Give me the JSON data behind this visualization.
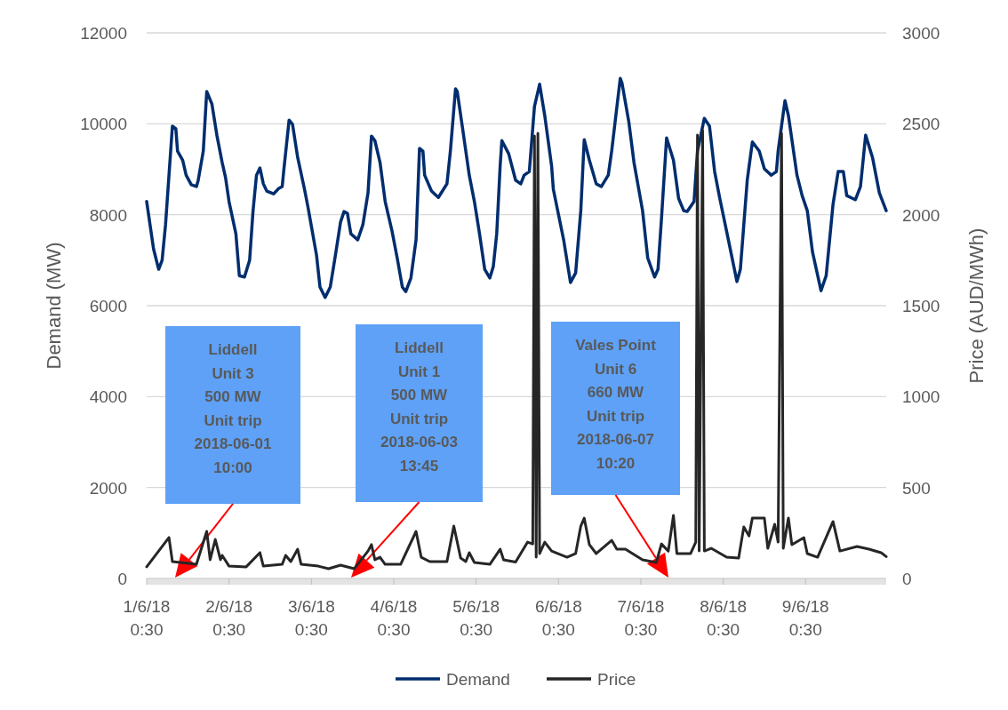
{
  "chart_data": {
    "type": "line",
    "xlim": [
      "2018-06-01T00:30",
      "2018-06-10T00:00"
    ],
    "xticks": [
      {
        "value": "2018-06-01T00:30",
        "label": "1/6/18 0:30"
      },
      {
        "value": "2018-06-02T00:30",
        "label": "2/6/18 0:30"
      },
      {
        "value": "2018-06-03T00:30",
        "label": "3/6/18 0:30"
      },
      {
        "value": "2018-06-04T00:30",
        "label": "4/6/18 0:30"
      },
      {
        "value": "2018-06-05T00:30",
        "label": "5/6/18 0:30"
      },
      {
        "value": "2018-06-06T00:30",
        "label": "6/6/18 0:30"
      },
      {
        "value": "2018-06-07T00:30",
        "label": "7/6/18 0:30"
      },
      {
        "value": "2018-06-08T00:30",
        "label": "8/6/18 0:30"
      },
      {
        "value": "2018-06-09T00:30",
        "label": "9/6/18 0:30"
      }
    ],
    "ylabel": "Demand (MW)",
    "y2label": "Price (AUD/MWh)",
    "ylim": [
      0,
      12000
    ],
    "yticks": [
      0,
      2000,
      4000,
      6000,
      8000,
      10000,
      12000
    ],
    "y2lim": [
      0,
      3000
    ],
    "y2ticks": [
      0,
      500,
      1000,
      1500,
      2000,
      2500,
      3000
    ],
    "grid": "y",
    "legend": "bottom",
    "series": [
      {
        "name": "Demand",
        "color": "#002d6e",
        "x": [
          "2018-06-01T00:30",
          "2018-06-01T02:30",
          "2018-06-01T04:00",
          "2018-06-01T05:00",
          "2018-06-01T06:00",
          "2018-06-01T08:00",
          "2018-06-01T09:00",
          "2018-06-01T09:30",
          "2018-06-01T11:00",
          "2018-06-01T12:00",
          "2018-06-01T13:30",
          "2018-06-01T15:00",
          "2018-06-01T15:30",
          "2018-06-01T17:00",
          "2018-06-01T18:00",
          "2018-06-01T19:30",
          "2018-06-01T21:00",
          "2018-06-01T22:30",
          "2018-06-01T23:30",
          "2018-06-02T00:30",
          "2018-06-02T02:30",
          "2018-06-02T03:30",
          "2018-06-02T05:00",
          "2018-06-02T06:30",
          "2018-06-02T07:30",
          "2018-06-02T08:30",
          "2018-06-02T09:30",
          "2018-06-02T10:30",
          "2018-06-02T11:30",
          "2018-06-02T13:30",
          "2018-06-02T15:00",
          "2018-06-02T16:00",
          "2018-06-02T16:30",
          "2018-06-02T18:00",
          "2018-06-02T19:00",
          "2018-06-02T20:30",
          "2018-06-02T22:30",
          "2018-06-02T23:30",
          "2018-06-03T02:00",
          "2018-06-03T03:00",
          "2018-06-03T04:30",
          "2018-06-03T06:00",
          "2018-06-03T07:30",
          "2018-06-03T09:00",
          "2018-06-03T10:00",
          "2018-06-03T11:00",
          "2018-06-03T12:00",
          "2018-06-03T14:00",
          "2018-06-03T15:30",
          "2018-06-03T17:00",
          "2018-06-03T18:00",
          "2018-06-03T19:00",
          "2018-06-03T20:30",
          "2018-06-03T22:00",
          "2018-06-04T00:00",
          "2018-06-04T01:30",
          "2018-06-04T03:00",
          "2018-06-04T04:00",
          "2018-06-04T05:30",
          "2018-06-04T07:00",
          "2018-06-04T08:00",
          "2018-06-04T09:00",
          "2018-06-04T09:30",
          "2018-06-04T11:30",
          "2018-06-04T13:30",
          "2018-06-04T15:00",
          "2018-06-04T16:00",
          "2018-06-04T17:00",
          "2018-06-04T18:30",
          "2018-06-04T19:00",
          "2018-06-04T20:30",
          "2018-06-04T22:30",
          "2018-06-05T00:00",
          "2018-06-05T01:30",
          "2018-06-05T03:00",
          "2018-06-05T04:30",
          "2018-06-05T05:30",
          "2018-06-05T06:30",
          "2018-06-05T07:30",
          "2018-06-05T08:00",
          "2018-06-05T10:00",
          "2018-06-05T12:00",
          "2018-06-05T13:30",
          "2018-06-05T14:30",
          "2018-06-05T16:00",
          "2018-06-05T17:30",
          "2018-06-05T19:00",
          "2018-06-05T20:30",
          "2018-06-05T22:30",
          "2018-06-05T23:00",
          "2018-06-06T02:00",
          "2018-06-06T04:00",
          "2018-06-06T05:30",
          "2018-06-06T07:00",
          "2018-06-06T08:00",
          "2018-06-06T09:30",
          "2018-06-06T11:30",
          "2018-06-06T13:00",
          "2018-06-06T15:00",
          "2018-06-06T16:00",
          "2018-06-06T18:30",
          "2018-06-06T19:00",
          "2018-06-06T21:00",
          "2018-06-06T22:30",
          "2018-06-07T01:00",
          "2018-06-07T02:30",
          "2018-06-07T04:30",
          "2018-06-07T05:30",
          "2018-06-07T06:30",
          "2018-06-07T08:00",
          "2018-06-07T10:00",
          "2018-06-07T11:30",
          "2018-06-07T13:00",
          "2018-06-07T14:00",
          "2018-06-07T16:00",
          "2018-06-07T17:00",
          "2018-06-07T19:00",
          "2018-06-07T20:30",
          "2018-06-07T22:00",
          "2018-06-07T23:30",
          "2018-06-08T02:00",
          "2018-06-08T04:30",
          "2018-06-08T05:30",
          "2018-06-08T07:30",
          "2018-06-08T09:00",
          "2018-06-08T11:00",
          "2018-06-08T12:30",
          "2018-06-08T14:30",
          "2018-06-08T16:00",
          "2018-06-08T16:30",
          "2018-06-08T18:30",
          "2018-06-08T19:30",
          "2018-06-08T22:00",
          "2018-06-08T23:30",
          "2018-06-09T01:00",
          "2018-06-09T02:30",
          "2018-06-09T05:00",
          "2018-06-09T06:30",
          "2018-06-09T08:30",
          "2018-06-09T10:00",
          "2018-06-09T11:30",
          "2018-06-09T12:30",
          "2018-06-09T15:00",
          "2018-06-09T16:30",
          "2018-06-09T18:00",
          "2018-06-09T20:00",
          "2018-06-09T22:00",
          "2018-06-10T00:00"
        ],
        "values": [
          8290,
          7250,
          6800,
          7000,
          7780,
          9950,
          9890,
          9400,
          9200,
          8870,
          8660,
          8620,
          8750,
          9400,
          10710,
          10440,
          9730,
          9150,
          8810,
          8290,
          7580,
          6660,
          6630,
          7000,
          8090,
          8870,
          9030,
          8680,
          8520,
          8460,
          8580,
          8620,
          9010,
          10080,
          9990,
          9260,
          8560,
          8170,
          7110,
          6410,
          6180,
          6410,
          7110,
          7840,
          8070,
          8030,
          7580,
          7450,
          7780,
          8480,
          9730,
          9630,
          9150,
          8290,
          7640,
          7050,
          6410,
          6310,
          6610,
          7450,
          9460,
          9400,
          8870,
          8520,
          8380,
          8560,
          8680,
          9400,
          10770,
          10710,
          9930,
          8870,
          8290,
          7580,
          6800,
          6610,
          6860,
          7580,
          9070,
          9630,
          9340,
          8760,
          8680,
          8870,
          8950,
          10380,
          10870,
          10180,
          9070,
          8560,
          7450,
          6510,
          6720,
          8090,
          9650,
          9200,
          8680,
          8620,
          8870,
          9400,
          11000,
          10900,
          10040,
          9150,
          8090,
          7050,
          6630,
          6800,
          7900,
          9690,
          9200,
          8360,
          8090,
          8070,
          8290,
          9400,
          10120,
          9950,
          8950,
          8360,
          7450,
          6530,
          6800,
          8760,
          9600,
          9400,
          9010,
          8870,
          8950,
          9400,
          10510,
          10180,
          8870,
          8420,
          8090,
          7190,
          6330,
          6660,
          8230,
          8950,
          8950,
          8420,
          8330,
          8620,
          9750,
          9260,
          8480,
          8090
        ]
      },
      {
        "name": "Price",
        "color": "#262626",
        "axis": "y2",
        "x": [
          "2018-06-01T00:30",
          "2018-06-01T07:00",
          "2018-06-01T08:00",
          "2018-06-01T15:00",
          "2018-06-01T18:00",
          "2018-06-01T19:00",
          "2018-06-01T20:30",
          "2018-06-01T22:00",
          "2018-06-01T22:30",
          "2018-06-02T00:30",
          "2018-06-02T05:30",
          "2018-06-02T09:30",
          "2018-06-02T10:30",
          "2018-06-02T16:00",
          "2018-06-02T17:00",
          "2018-06-02T18:30",
          "2018-06-02T20:30",
          "2018-06-02T21:30",
          "2018-06-03T02:30",
          "2018-06-03T05:30",
          "2018-06-03T09:00",
          "2018-06-03T13:00",
          "2018-06-03T17:00",
          "2018-06-03T18:00",
          "2018-06-03T19:00",
          "2018-06-03T20:30",
          "2018-06-03T22:00",
          "2018-06-04T02:30",
          "2018-06-04T07:00",
          "2018-06-04T08:30",
          "2018-06-04T11:00",
          "2018-06-04T16:00",
          "2018-06-04T18:00",
          "2018-06-04T20:00",
          "2018-06-04T21:30",
          "2018-06-04T22:30",
          "2018-06-05T00:00",
          "2018-06-05T04:30",
          "2018-06-05T07:30",
          "2018-06-05T08:30",
          "2018-06-05T12:00",
          "2018-06-05T15:30",
          "2018-06-05T17:00",
          "2018-06-05T17:30",
          "2018-06-05T18:00",
          "2018-06-05T18:30",
          "2018-06-05T19:00",
          "2018-06-05T20:30",
          "2018-06-05T22:30",
          "2018-06-06T03:00",
          "2018-06-06T05:30",
          "2018-06-06T07:00",
          "2018-06-06T08:00",
          "2018-06-06T09:30",
          "2018-06-06T11:30",
          "2018-06-06T16:00",
          "2018-06-06T17:30",
          "2018-06-06T20:00",
          "2018-06-07T01:00",
          "2018-06-07T05:00",
          "2018-06-07T06:30",
          "2018-06-07T08:30",
          "2018-06-07T10:00",
          "2018-06-07T11:00",
          "2018-06-07T15:00",
          "2018-06-07T16:30",
          "2018-06-07T17:00",
          "2018-06-07T17:30",
          "2018-06-07T18:30",
          "2018-06-07T19:00",
          "2018-06-07T21:00",
          "2018-06-08T01:30",
          "2018-06-08T05:00",
          "2018-06-08T06:30",
          "2018-06-08T08:00",
          "2018-06-08T09:00",
          "2018-06-08T12:30",
          "2018-06-08T13:30",
          "2018-06-08T15:30",
          "2018-06-08T16:30",
          "2018-06-08T17:30",
          "2018-06-08T18:00",
          "2018-06-08T19:30",
          "2018-06-08T20:30",
          "2018-06-09T00:00",
          "2018-06-09T01:00",
          "2018-06-09T04:00",
          "2018-06-09T08:30",
          "2018-06-09T10:30",
          "2018-06-09T15:30",
          "2018-06-09T19:00",
          "2018-06-09T22:30",
          "2018-06-10T00:00"
        ],
        "values": [
          64,
          225,
          93,
          78,
          259,
          103,
          215,
          103,
          127,
          68,
          64,
          142,
          68,
          78,
          127,
          93,
          161,
          78,
          68,
          54,
          73,
          54,
          151,
          186,
          103,
          117,
          78,
          78,
          259,
          117,
          93,
          93,
          288,
          112,
          93,
          142,
          88,
          78,
          161,
          103,
          90,
          200,
          190,
          2433,
          117,
          2448,
          137,
          200,
          151,
          117,
          137,
          288,
          332,
          186,
          137,
          210,
          161,
          161,
          103,
          88,
          190,
          151,
          347,
          137,
          137,
          200,
          2438,
          151,
          2462,
          151,
          166,
          117,
          112,
          283,
          234,
          332,
          332,
          166,
          298,
          200,
          2448,
          166,
          332,
          186,
          225,
          137,
          117,
          313,
          151,
          176,
          161,
          142,
          120
        ]
      }
    ],
    "annotations": [
      "Liddell\nUnit 3\n500 MW\nUnit trip\n2018-06-01\n10:00",
      "Liddell\nUnit 1\n500 MW\nUnit trip\n2018-06-03\n13:45",
      "Vales Point\nUnit 6\n660 MW\nUnit trip\n2018-06-07\n10:20"
    ]
  }
}
